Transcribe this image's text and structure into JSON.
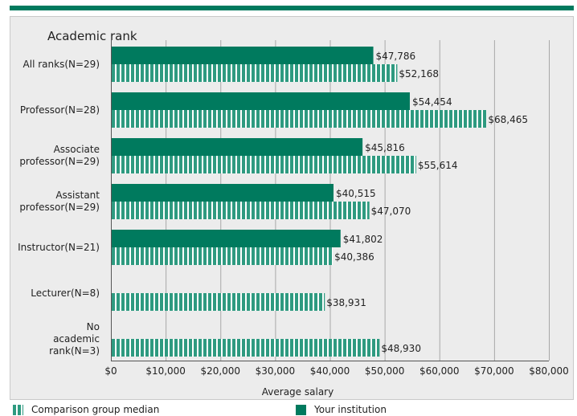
{
  "chart_data": {
    "type": "bar",
    "orientation": "horizontal",
    "title": "Academic rank",
    "xlabel": "Average salary",
    "xlim": [
      0,
      80000
    ],
    "xticks": [
      "$0",
      "$10,000",
      "$20,000",
      "$30,000",
      "$40,000",
      "$50,000",
      "$60,000",
      "$70,000",
      "$80,000"
    ],
    "categories": [
      "All ranks(N=29)",
      "Professor(N=28)",
      "Associate\nprofessor(N=29)",
      "Assistant\nprofessor(N=29)",
      "Instructor(N=21)",
      "Lecturer(N=8)",
      "No\nacademic\nrank(N=3)"
    ],
    "series": [
      {
        "name": "Your institution",
        "values": [
          47786,
          54454,
          45816,
          40515,
          41802,
          null,
          null
        ],
        "labels": [
          "$47,786",
          "$54,454",
          "$45,816",
          "$40,515",
          "$41,802",
          "",
          ""
        ],
        "color": "#007A5E",
        "pattern": "solid"
      },
      {
        "name": "Comparison group median",
        "values": [
          52168,
          68465,
          55614,
          47070,
          40386,
          38931,
          48930
        ],
        "labels": [
          "$52,168",
          "$68,465",
          "$55,614",
          "$47,070",
          "$40,386",
          "$38,931",
          "$48,930"
        ],
        "color": "#2E9A80",
        "pattern": "vertical-stripes"
      }
    ],
    "grid": true,
    "legend_position": "bottom"
  }
}
